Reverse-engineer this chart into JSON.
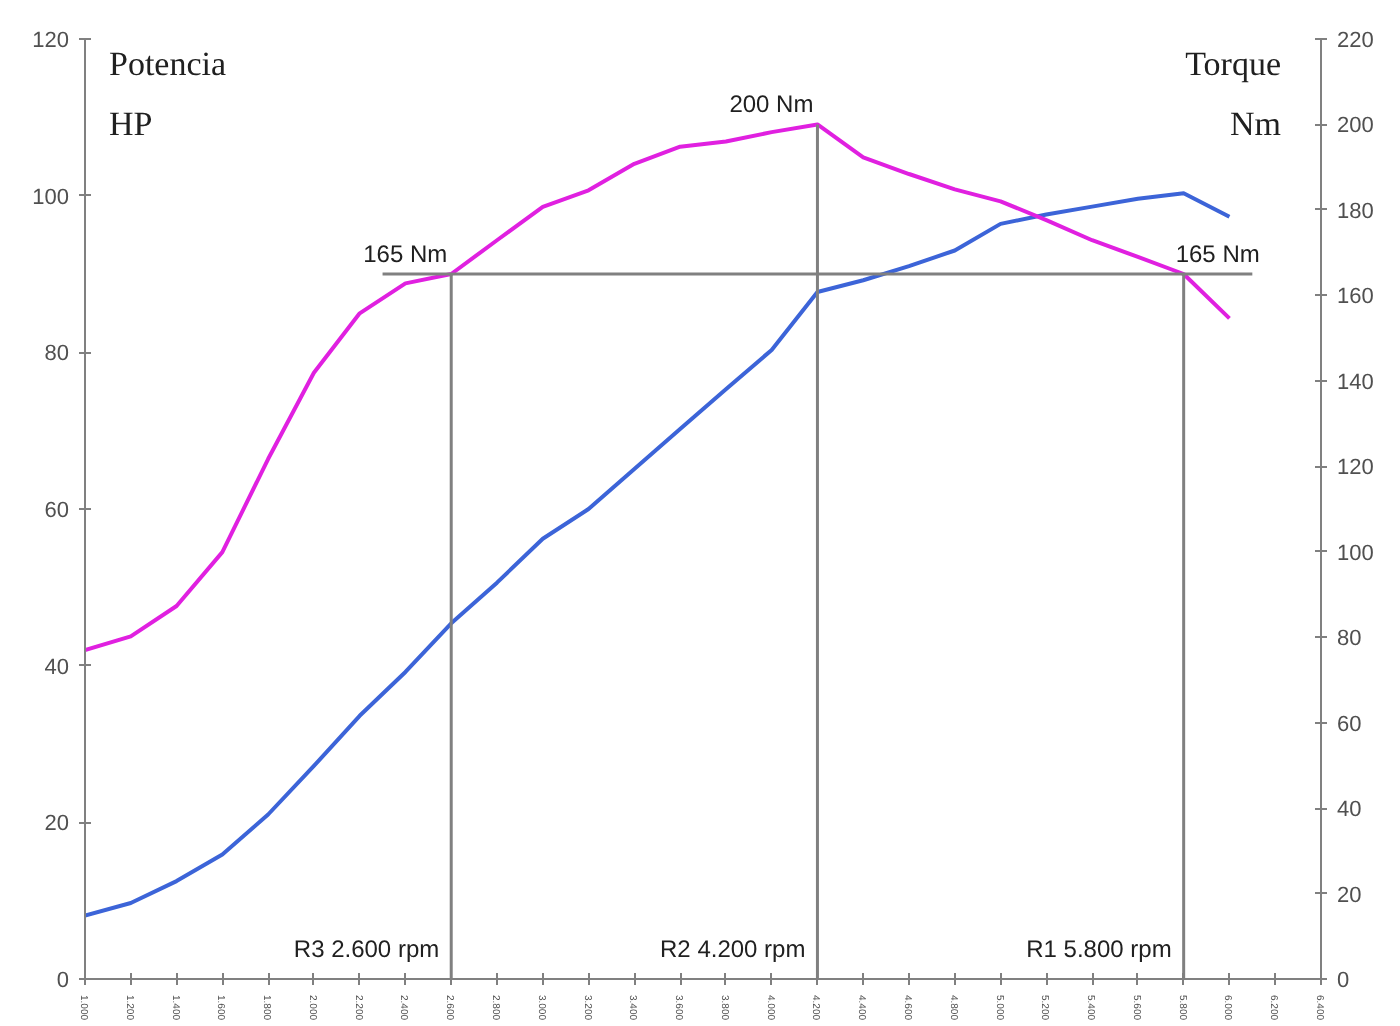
{
  "chart_data": {
    "type": "line",
    "ylabel": "Potencia\nHP",
    "y2label": "Torque\nNm",
    "x": [
      1000,
      1200,
      1400,
      1600,
      1800,
      2000,
      2200,
      2400,
      2600,
      2800,
      3000,
      3200,
      3400,
      3600,
      3800,
      4000,
      4200,
      4400,
      4600,
      4800,
      5000,
      5200,
      5400,
      5600,
      5800,
      6000
    ],
    "series": [
      {
        "color": "#3c64d8",
        "values": [
          8.1,
          9.7,
          12.5,
          15.9,
          21,
          27.2,
          33.6,
          39.2,
          45.4,
          50.6,
          56.2,
          60,
          65.1,
          70.2,
          75.3,
          80.3,
          87.7,
          89.2,
          91,
          93,
          96.4,
          97.6,
          98.6,
          99.6,
          100.3,
          97.3
        ]
      },
      {
        "color": "#e020e0",
        "axis": "y2",
        "values": [
          77,
          80.2,
          87.3,
          99.9,
          121.7,
          141.9,
          155.8,
          162.8,
          165,
          172.9,
          180.7,
          184.6,
          190.8,
          194.8,
          196,
          198.2,
          200,
          192.3,
          188.4,
          184.8,
          182,
          177.6,
          172.9,
          169,
          165,
          154.6
        ]
      }
    ],
    "xlim": [
      1000,
      6400
    ],
    "xticks": [
      {
        "value": 1000,
        "label": "1.000"
      },
      {
        "value": 1200,
        "label": "1.200"
      },
      {
        "value": 1400,
        "label": "1.400"
      },
      {
        "value": 1600,
        "label": "1.600"
      },
      {
        "value": 1800,
        "label": "1.800"
      },
      {
        "value": 2000,
        "label": "2.000"
      },
      {
        "value": 2200,
        "label": "2.200"
      },
      {
        "value": 2400,
        "label": "2.400"
      },
      {
        "value": 2600,
        "label": "2.600"
      },
      {
        "value": 2800,
        "label": "2.800"
      },
      {
        "value": 3000,
        "label": "3.000"
      },
      {
        "value": 3200,
        "label": "3.200"
      },
      {
        "value": 3400,
        "label": "3.400"
      },
      {
        "value": 3600,
        "label": "3.600"
      },
      {
        "value": 3800,
        "label": "3.800"
      },
      {
        "value": 4000,
        "label": "4.000"
      },
      {
        "value": 4200,
        "label": "4.200"
      },
      {
        "value": 4400,
        "label": "4.400"
      },
      {
        "value": 4600,
        "label": "4.600"
      },
      {
        "value": 4800,
        "label": "4.800"
      },
      {
        "value": 5000,
        "label": "5.000"
      },
      {
        "value": 5200,
        "label": "5.200"
      },
      {
        "value": 5400,
        "label": "5.400"
      },
      {
        "value": 5600,
        "label": "5.600"
      },
      {
        "value": 5800,
        "label": "5.800"
      },
      {
        "value": 6000,
        "label": "6.000"
      },
      {
        "value": 6200,
        "label": "6.200"
      },
      {
        "value": 6400,
        "label": "6.400"
      }
    ],
    "ylim": [
      0,
      120
    ],
    "yticks": [
      0,
      20,
      40,
      60,
      80,
      100,
      120
    ],
    "y2lim": [
      0,
      220
    ],
    "y2ticks": [
      0,
      20,
      40,
      60,
      80,
      100,
      120,
      140,
      160,
      180,
      200,
      220
    ],
    "ref_lines": [
      {
        "axis": "x",
        "value": 2600,
        "label": "R3 2.600 rpm",
        "color": "#808080"
      },
      {
        "axis": "x",
        "value": 4200,
        "label": "R2 4.200 rpm",
        "color": "#808080"
      },
      {
        "axis": "x",
        "value": 5800,
        "label": "R1 5.800 rpm",
        "color": "#808080"
      },
      {
        "axis": "y2",
        "value": 165,
        "color": "#808080"
      }
    ],
    "annotations": [
      {
        "text": "165 Nm",
        "x": 2600,
        "y": 90
      },
      {
        "text": "200 Nm",
        "x": 4200,
        "y": 109.1
      },
      {
        "text": "165 Nm",
        "x": 5800,
        "y": 90
      }
    ],
    "grid": false,
    "marker": "none",
    "line_style": "solid"
  }
}
